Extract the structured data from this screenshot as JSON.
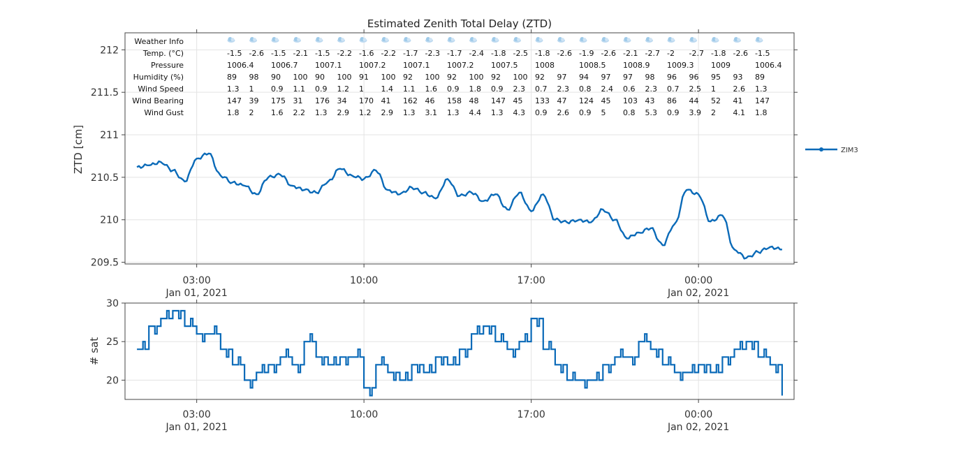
{
  "chart_data": [
    {
      "type": "line",
      "title": "Estimated Zenith Total Delay (ZTD)",
      "ylabel": "ZTD [cm]",
      "xlabel": "",
      "ylim": [
        209.48,
        212.2
      ],
      "yticks": [
        209.5,
        210,
        210.5,
        211,
        211.5,
        212
      ],
      "xlim": [
        "2021-01-01 00:00",
        "2021-01-02 04:00"
      ],
      "xticks": [
        {
          "x": "2021-01-01 03:00",
          "time": "03:00",
          "date": "Jan 01, 2021"
        },
        {
          "x": "2021-01-01 10:00",
          "time": "10:00",
          "date": ""
        },
        {
          "x": "2021-01-01 17:00",
          "time": "17:00",
          "date": ""
        },
        {
          "x": "2021-01-02 00:00",
          "time": "00:00",
          "date": "Jan 02, 2021"
        }
      ],
      "grid": true,
      "legend": "right",
      "series": [
        {
          "name": "ZIM3",
          "color": "#0a6ab8",
          "x": [
            "2021-01-01 00:30",
            "2021-01-01 01:00",
            "2021-01-01 01:30",
            "2021-01-01 02:00",
            "2021-01-01 02:30",
            "2021-01-01 03:00",
            "2021-01-01 03:30",
            "2021-01-01 04:00",
            "2021-01-01 04:30",
            "2021-01-01 05:00",
            "2021-01-01 05:30",
            "2021-01-01 06:00",
            "2021-01-01 06:30",
            "2021-01-01 07:00",
            "2021-01-01 07:30",
            "2021-01-01 08:00",
            "2021-01-01 08:30",
            "2021-01-01 09:00",
            "2021-01-01 09:30",
            "2021-01-01 10:00",
            "2021-01-01 10:30",
            "2021-01-01 11:00",
            "2021-01-01 11:30",
            "2021-01-01 12:00",
            "2021-01-01 12:30",
            "2021-01-01 13:00",
            "2021-01-01 13:30",
            "2021-01-01 14:00",
            "2021-01-01 14:30",
            "2021-01-01 15:00",
            "2021-01-01 15:30",
            "2021-01-01 16:00",
            "2021-01-01 16:30",
            "2021-01-01 17:00",
            "2021-01-01 17:30",
            "2021-01-01 18:00",
            "2021-01-01 18:30",
            "2021-01-01 19:00",
            "2021-01-01 19:30",
            "2021-01-01 20:00",
            "2021-01-01 20:30",
            "2021-01-01 21:00",
            "2021-01-01 21:30",
            "2021-01-01 22:00",
            "2021-01-01 22:30",
            "2021-01-01 23:00",
            "2021-01-01 23:30",
            "2021-01-02 00:00",
            "2021-01-02 00:30",
            "2021-01-02 01:00",
            "2021-01-02 01:30",
            "2021-01-02 02:00",
            "2021-01-02 02:30",
            "2021-01-02 03:00",
            "2021-01-02 03:30"
          ],
          "values": [
            210.62,
            210.64,
            210.68,
            210.58,
            210.45,
            210.72,
            210.78,
            210.52,
            210.44,
            210.4,
            210.3,
            210.5,
            210.53,
            210.4,
            210.35,
            210.32,
            210.45,
            210.6,
            210.52,
            210.48,
            210.58,
            210.35,
            210.3,
            210.38,
            210.32,
            210.25,
            210.48,
            210.28,
            210.32,
            210.22,
            210.3,
            210.12,
            210.32,
            210.1,
            210.3,
            210.0,
            209.97,
            210.0,
            209.97,
            210.12,
            210.0,
            209.78,
            209.85,
            209.9,
            209.7,
            209.95,
            210.35,
            210.3,
            209.98,
            210.05,
            209.65,
            209.55,
            209.62,
            209.68,
            209.65
          ]
        }
      ]
    },
    {
      "type": "line",
      "title": "",
      "ylabel": "# sat",
      "xlabel": "",
      "ylim": [
        17.5,
        30
      ],
      "yticks": [
        20,
        25,
        30
      ],
      "xlim": [
        "2021-01-01 00:00",
        "2021-01-02 04:00"
      ],
      "xticks": [
        {
          "x": "2021-01-01 03:00",
          "time": "03:00",
          "date": "Jan 01, 2021"
        },
        {
          "x": "2021-01-01 10:00",
          "time": "10:00",
          "date": ""
        },
        {
          "x": "2021-01-01 17:00",
          "time": "17:00",
          "date": ""
        },
        {
          "x": "2021-01-02 00:00",
          "time": "00:00",
          "date": "Jan 02, 2021"
        }
      ],
      "grid": true,
      "series": [
        {
          "color": "#0a6ab8",
          "x": [
            "2021-01-01 00:30",
            "2021-01-01 01:00",
            "2021-01-01 01:30",
            "2021-01-01 02:00",
            "2021-01-01 02:30",
            "2021-01-01 03:00",
            "2021-01-01 03:30",
            "2021-01-01 04:00",
            "2021-01-01 04:30",
            "2021-01-01 05:00",
            "2021-01-01 05:30",
            "2021-01-01 06:00",
            "2021-01-01 06:30",
            "2021-01-01 07:00",
            "2021-01-01 07:30",
            "2021-01-01 08:00",
            "2021-01-01 08:30",
            "2021-01-01 09:00",
            "2021-01-01 09:30",
            "2021-01-01 10:00",
            "2021-01-01 10:30",
            "2021-01-01 11:00",
            "2021-01-01 11:30",
            "2021-01-01 12:00",
            "2021-01-01 12:30",
            "2021-01-01 13:00",
            "2021-01-01 13:30",
            "2021-01-01 14:00",
            "2021-01-01 14:30",
            "2021-01-01 15:00",
            "2021-01-01 15:30",
            "2021-01-01 16:00",
            "2021-01-01 16:30",
            "2021-01-01 17:00",
            "2021-01-01 17:30",
            "2021-01-01 18:00",
            "2021-01-01 18:30",
            "2021-01-01 19:00",
            "2021-01-01 19:30",
            "2021-01-01 20:00",
            "2021-01-01 20:30",
            "2021-01-01 21:00",
            "2021-01-01 21:30",
            "2021-01-01 22:00",
            "2021-01-01 22:30",
            "2021-01-01 23:00",
            "2021-01-01 23:30",
            "2021-01-02 00:00",
            "2021-01-02 00:30",
            "2021-01-02 01:00",
            "2021-01-02 01:30",
            "2021-01-02 02:00",
            "2021-01-02 02:30",
            "2021-01-02 03:00",
            "2021-01-02 03:30"
          ],
          "values": [
            24,
            27,
            28,
            29,
            27,
            26,
            26,
            24,
            22,
            20,
            21,
            22,
            23,
            22,
            25,
            23,
            22,
            23,
            23,
            19,
            22,
            21,
            20,
            22,
            21,
            23,
            22,
            24,
            26,
            27,
            25,
            24,
            25,
            28,
            24,
            22,
            20,
            20,
            20,
            22,
            23,
            23,
            25,
            24,
            22,
            21,
            21,
            22,
            21,
            23,
            24,
            25,
            23,
            22,
            18
          ]
        }
      ]
    }
  ],
  "weather": {
    "rows": [
      {
        "label": "Weather Info",
        "values": []
      },
      {
        "label": "Temp. (°C)",
        "values": [
          "-1.5",
          "-2.6",
          "-1.5",
          "-2.1",
          "-1.5",
          "-2.2",
          "-1.6",
          "-2.2",
          "-1.7",
          "-2.3",
          "-1.7",
          "-2.4",
          "-1.8",
          "-2.5",
          "-1.8",
          "-2.6",
          "-1.9",
          "-2.6",
          "-2.1",
          "-2.7",
          "-2",
          "-2.7",
          "-1.8",
          "-2.6",
          "-1.5"
        ]
      },
      {
        "label": "Pressure",
        "values": [
          "1006.4",
          "",
          "1006.7",
          "",
          "1007.1",
          "",
          "1007.2",
          "",
          "1007.1",
          "",
          "1007.2",
          "",
          "1007.5",
          "",
          "1008",
          "",
          "1008.5",
          "",
          "1008.9",
          "",
          "1009.3",
          "",
          "1009",
          "",
          "1006.4"
        ]
      },
      {
        "label": "Humidity (%)",
        "values": [
          "89",
          "98",
          "90",
          "100",
          "90",
          "100",
          "91",
          "100",
          "92",
          "100",
          "92",
          "100",
          "92",
          "100",
          "92",
          "97",
          "94",
          "97",
          "97",
          "98",
          "96",
          "96",
          "95",
          "93",
          "89"
        ]
      },
      {
        "label": "Wind Speed",
        "values": [
          "1.3",
          "1",
          "0.9",
          "1.1",
          "0.9",
          "1.2",
          "1",
          "1.4",
          "1.1",
          "1.6",
          "0.9",
          "1.8",
          "0.9",
          "2.3",
          "0.7",
          "2.3",
          "0.8",
          "2.4",
          "0.6",
          "2.3",
          "0.7",
          "2.5",
          "1",
          "2.6",
          "1.3"
        ]
      },
      {
        "label": "Wind Bearing",
        "values": [
          "147",
          "39",
          "175",
          "31",
          "176",
          "34",
          "170",
          "41",
          "162",
          "46",
          "158",
          "48",
          "147",
          "45",
          "133",
          "47",
          "124",
          "45",
          "103",
          "43",
          "86",
          "44",
          "52",
          "41",
          "147"
        ]
      },
      {
        "label": "Wind Gust",
        "values": [
          "1.8",
          "2",
          "1.6",
          "2.2",
          "1.3",
          "2.9",
          "1.2",
          "2.9",
          "1.3",
          "3.1",
          "1.3",
          "4.4",
          "1.3",
          "4.3",
          "0.9",
          "2.6",
          "0.9",
          "5",
          "0.8",
          "5.3",
          "0.9",
          "3.9",
          "2",
          "4.1",
          "1.8"
        ]
      }
    ],
    "icon": "cloud-icon",
    "icon_count": 25
  }
}
